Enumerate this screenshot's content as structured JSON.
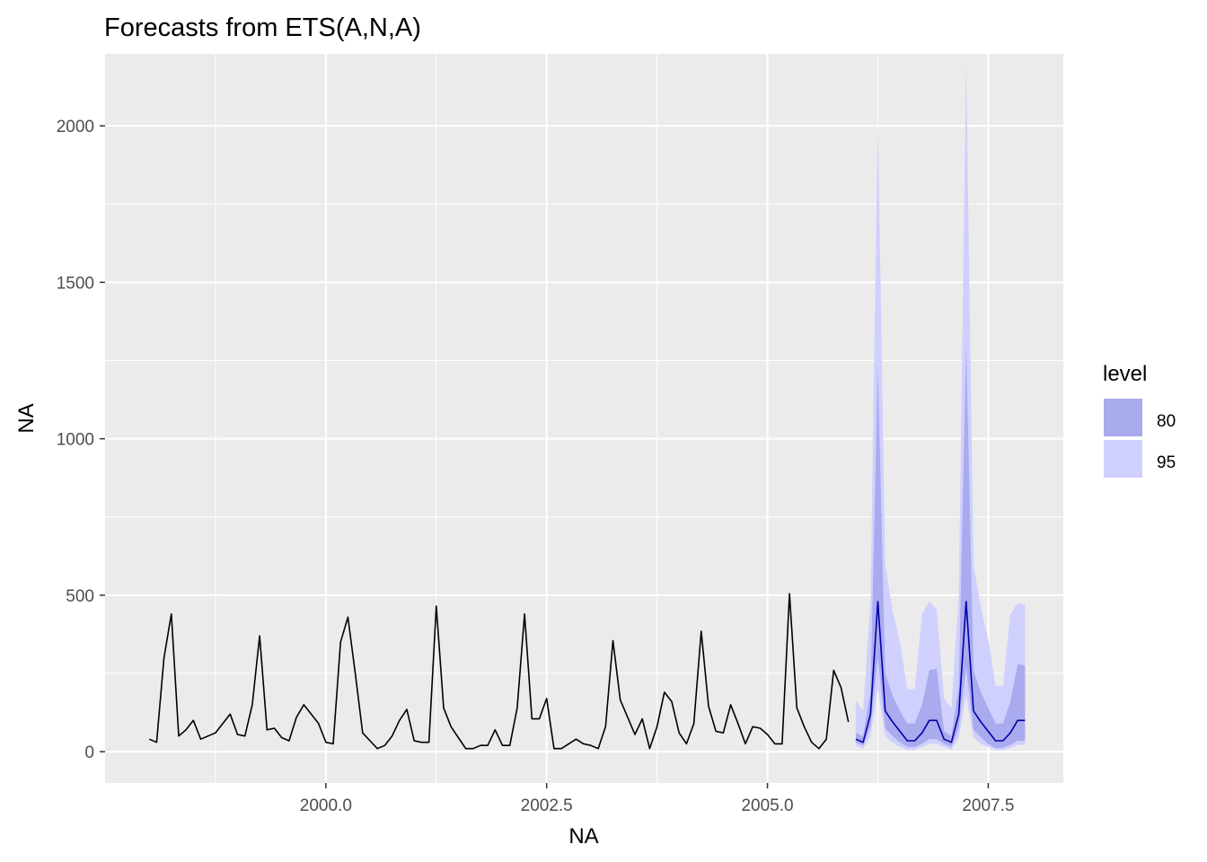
{
  "chart_data": {
    "type": "line",
    "title": "Forecasts from ETS(A,N,A)",
    "xlabel": "NA",
    "ylabel": "NA",
    "xlim": [
      1997.5,
      2008.35
    ],
    "ylim": [
      -100,
      2230
    ],
    "x_ticks": [
      2000,
      2002.5,
      2005,
      2007.5
    ],
    "x_tick_labels": [
      "2000.0",
      "2002.5",
      "2005.0",
      "2007.5"
    ],
    "y_ticks": [
      0,
      500,
      1000,
      1500,
      2000
    ],
    "y_tick_labels": [
      "0",
      "500",
      "1000",
      "1500",
      "2000"
    ],
    "grid": true,
    "legend": {
      "title": "level",
      "position": "right",
      "entries": [
        {
          "label": "80",
          "color": "#aaaaee"
        },
        {
          "label": "95",
          "color": "#d0d0ff"
        }
      ]
    },
    "colors": {
      "panel": "#ebebeb",
      "grid": "#ffffff",
      "history_line": "#000000",
      "forecast_line": "#0000aa",
      "band_80": "#aaaaee",
      "band_95": "#d0d0ff"
    },
    "history": {
      "start": 1998,
      "frequency": 12,
      "values": [
        40,
        30,
        300,
        440,
        50,
        70,
        100,
        40,
        50,
        60,
        90,
        120,
        55,
        50,
        150,
        370,
        70,
        75,
        45,
        35,
        110,
        150,
        120,
        90,
        30,
        25,
        350,
        430,
        250,
        60,
        35,
        10,
        20,
        50,
        100,
        135,
        35,
        30,
        30,
        465,
        140,
        80,
        45,
        10,
        10,
        20,
        20,
        70,
        20,
        20,
        140,
        440,
        105,
        105,
        170,
        10,
        10,
        25,
        40,
        25,
        20,
        10,
        80,
        355,
        165,
        110,
        55,
        105,
        10,
        80,
        190,
        160,
        60,
        25,
        90,
        385,
        145,
        65,
        60,
        150,
        90,
        25,
        80,
        75,
        55,
        25,
        25,
        505,
        140,
        80,
        30,
        10,
        40,
        260,
        205,
        95
      ]
    },
    "forecast": {
      "start": 2006,
      "frequency": 12,
      "mean": [
        40,
        30,
        120,
        480,
        130,
        95,
        65,
        35,
        35,
        60,
        100,
        100,
        40,
        30,
        120,
        480,
        130,
        95,
        65,
        35,
        35,
        60,
        100,
        100
      ],
      "lo80": [
        30,
        20,
        80,
        300,
        75,
        50,
        30,
        15,
        15,
        25,
        40,
        40,
        25,
        15,
        75,
        270,
        70,
        45,
        25,
        12,
        12,
        22,
        35,
        35
      ],
      "hi80": [
        60,
        50,
        190,
        1230,
        250,
        180,
        130,
        90,
        90,
        150,
        260,
        265,
        65,
        50,
        210,
        1300,
        260,
        190,
        140,
        90,
        90,
        160,
        280,
        275
      ],
      "lo95": [
        20,
        10,
        50,
        200,
        50,
        30,
        15,
        5,
        5,
        15,
        25,
        25,
        15,
        5,
        45,
        180,
        45,
        25,
        15,
        5,
        5,
        12,
        22,
        22
      ],
      "hi95": [
        165,
        130,
        480,
        2015,
        600,
        450,
        350,
        200,
        200,
        440,
        480,
        455,
        170,
        140,
        500,
        2200,
        600,
        460,
        360,
        210,
        210,
        440,
        475,
        470
      ]
    }
  }
}
